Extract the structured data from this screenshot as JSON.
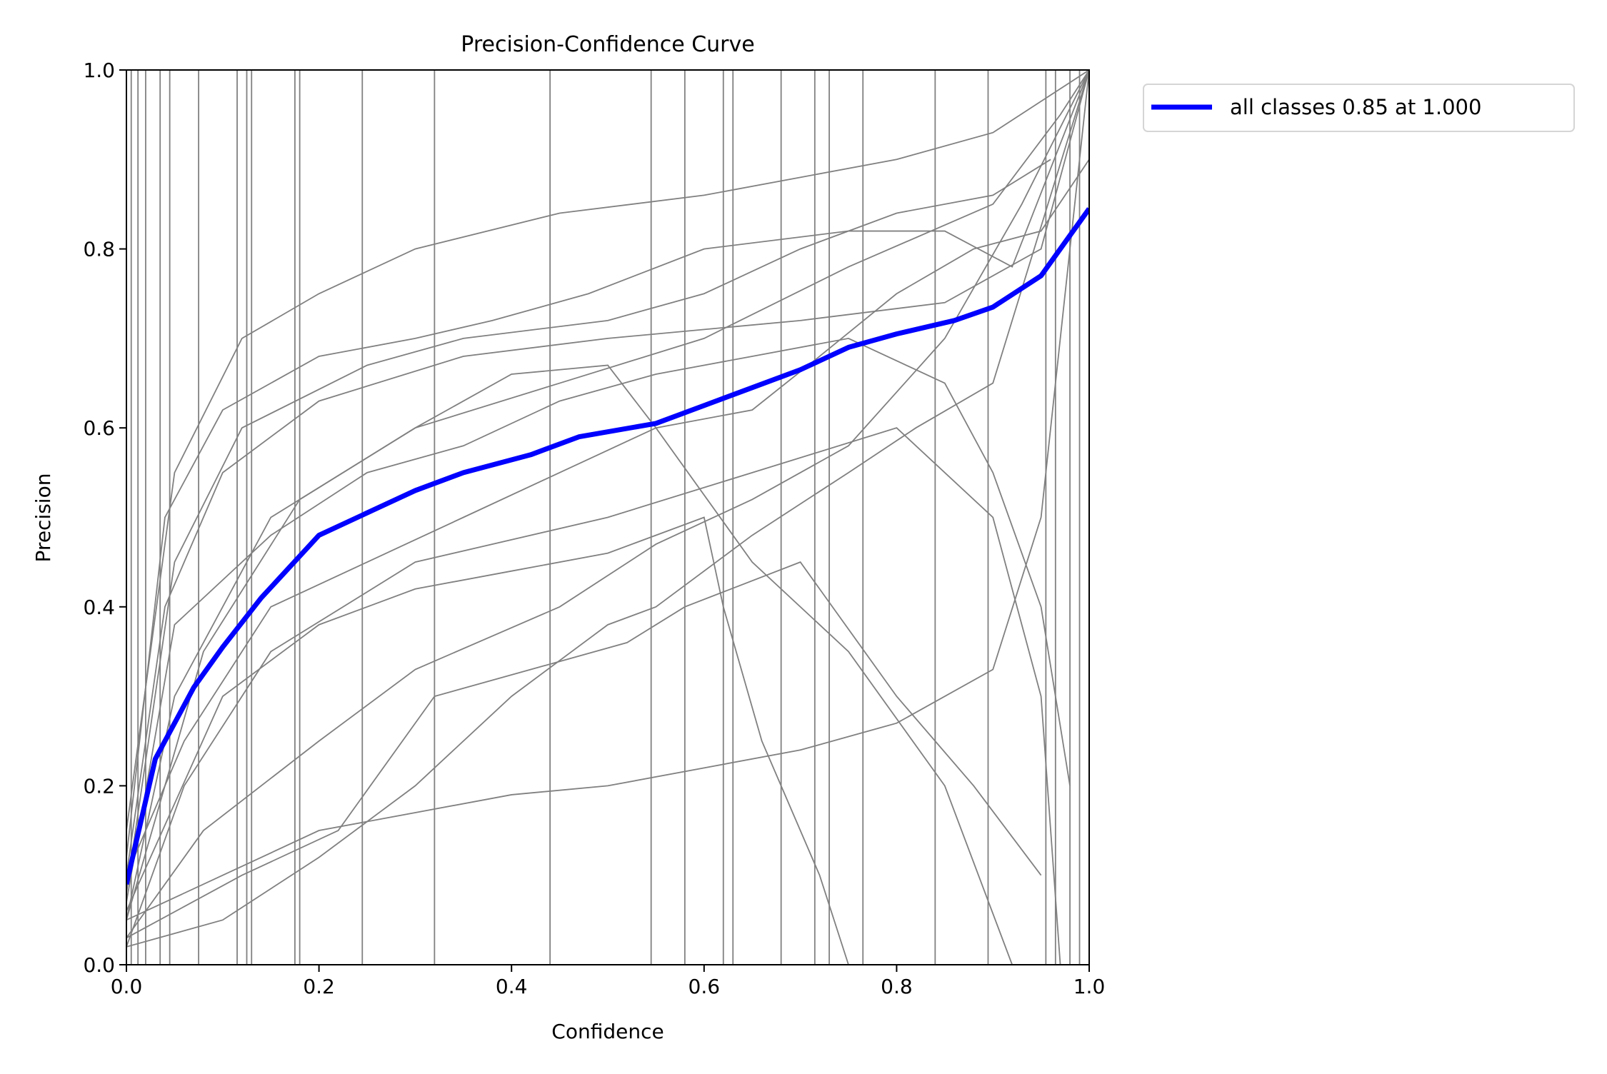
{
  "chart_data": {
    "type": "line",
    "title": "Precision-Confidence Curve",
    "xlabel": "Confidence",
    "ylabel": "Precision",
    "xlim": [
      0,
      1
    ],
    "ylim": [
      0,
      1
    ],
    "xticks": [
      "0.0",
      "0.2",
      "0.4",
      "0.6",
      "0.8",
      "1.0"
    ],
    "yticks": [
      "0.0",
      "0.2",
      "0.4",
      "0.6",
      "0.8",
      "1.0"
    ],
    "grid": false,
    "legend_placement": "outside-top-right",
    "colors": {
      "all_classes": "#0000ff",
      "per_class": "#808080"
    },
    "series": [
      {
        "name": "all classes 0.85 at 1.000",
        "points": [
          [
            0,
            0.09
          ],
          [
            0.03,
            0.23
          ],
          [
            0.07,
            0.31
          ],
          [
            0.1,
            0.355
          ],
          [
            0.14,
            0.41
          ],
          [
            0.2,
            0.48
          ],
          [
            0.25,
            0.505
          ],
          [
            0.3,
            0.53
          ],
          [
            0.35,
            0.55
          ],
          [
            0.42,
            0.57
          ],
          [
            0.47,
            0.59
          ],
          [
            0.55,
            0.605
          ],
          [
            0.6,
            0.625
          ],
          [
            0.65,
            0.645
          ],
          [
            0.7,
            0.665
          ],
          [
            0.75,
            0.69
          ],
          [
            0.8,
            0.705
          ],
          [
            0.86,
            0.72
          ],
          [
            0.9,
            0.735
          ],
          [
            0.95,
            0.77
          ],
          [
            0.97,
            0.8
          ],
          [
            1.0,
            0.845
          ]
        ]
      }
    ],
    "class_series": [
      [
        [
          0,
          0.05
        ],
        [
          0.05,
          0.3
        ],
        [
          0.15,
          0.5
        ],
        [
          0.3,
          0.6
        ],
        [
          0.45,
          0.65
        ],
        [
          0.6,
          0.7
        ],
        [
          0.75,
          0.78
        ],
        [
          0.9,
          0.85
        ],
        [
          0.97,
          0.95
        ],
        [
          1,
          1
        ]
      ],
      [
        [
          0,
          0.1
        ],
        [
          0.04,
          0.4
        ],
        [
          0.1,
          0.55
        ],
        [
          0.2,
          0.63
        ],
        [
          0.35,
          0.68
        ],
        [
          0.5,
          0.7
        ],
        [
          0.7,
          0.72
        ],
        [
          0.85,
          0.74
        ],
        [
          0.95,
          0.8
        ],
        [
          1,
          1
        ]
      ],
      [
        [
          0,
          0.02
        ],
        [
          0.06,
          0.2
        ],
        [
          0.15,
          0.35
        ],
        [
          0.3,
          0.45
        ],
        [
          0.5,
          0.5
        ],
        [
          0.65,
          0.55
        ],
        [
          0.8,
          0.6
        ],
        [
          0.9,
          0.5
        ],
        [
          0.95,
          0.3
        ],
        [
          0.97,
          0
        ]
      ],
      [
        [
          0,
          0.05
        ],
        [
          0.1,
          0.1
        ],
        [
          0.2,
          0.15
        ],
        [
          0.3,
          0.17
        ],
        [
          0.4,
          0.19
        ],
        [
          0.5,
          0.2
        ],
        [
          0.6,
          0.22
        ],
        [
          0.7,
          0.24
        ],
        [
          0.8,
          0.27
        ],
        [
          0.9,
          0.33
        ],
        [
          0.95,
          0.5
        ],
        [
          1,
          1
        ]
      ],
      [
        [
          0,
          0.15
        ],
        [
          0.05,
          0.55
        ],
        [
          0.12,
          0.7
        ],
        [
          0.2,
          0.75
        ],
        [
          0.3,
          0.8
        ],
        [
          0.45,
          0.84
        ],
        [
          0.6,
          0.86
        ],
        [
          0.7,
          0.88
        ],
        [
          0.8,
          0.9
        ],
        [
          0.9,
          0.93
        ],
        [
          1,
          1
        ]
      ],
      [
        [
          0,
          0.03
        ],
        [
          0.08,
          0.15
        ],
        [
          0.2,
          0.25
        ],
        [
          0.3,
          0.33
        ],
        [
          0.45,
          0.4
        ],
        [
          0.55,
          0.47
        ],
        [
          0.65,
          0.52
        ],
        [
          0.75,
          0.58
        ],
        [
          0.85,
          0.7
        ],
        [
          0.93,
          0.85
        ],
        [
          1,
          1
        ]
      ],
      [
        [
          0,
          0.05
        ],
        [
          0.08,
          0.35
        ],
        [
          0.18,
          0.52
        ],
        [
          0.3,
          0.6
        ],
        [
          0.4,
          0.66
        ],
        [
          0.5,
          0.67
        ],
        [
          0.55,
          0.6
        ],
        [
          0.65,
          0.45
        ],
        [
          0.75,
          0.35
        ],
        [
          0.85,
          0.2
        ],
        [
          0.92,
          0
        ]
      ],
      [
        [
          0,
          0.08
        ],
        [
          0.05,
          0.45
        ],
        [
          0.12,
          0.6
        ],
        [
          0.25,
          0.67
        ],
        [
          0.35,
          0.7
        ],
        [
          0.5,
          0.72
        ],
        [
          0.6,
          0.75
        ],
        [
          0.7,
          0.8
        ],
        [
          0.8,
          0.84
        ],
        [
          0.9,
          0.86
        ],
        [
          0.96,
          0.9
        ]
      ],
      [
        [
          0,
          0.02
        ],
        [
          0.1,
          0.05
        ],
        [
          0.2,
          0.12
        ],
        [
          0.3,
          0.2
        ],
        [
          0.4,
          0.3
        ],
        [
          0.5,
          0.38
        ],
        [
          0.55,
          0.4
        ],
        [
          0.65,
          0.48
        ],
        [
          0.75,
          0.55
        ],
        [
          0.82,
          0.6
        ],
        [
          0.9,
          0.65
        ],
        [
          1,
          1
        ]
      ],
      [
        [
          0,
          0.1
        ],
        [
          0.06,
          0.25
        ],
        [
          0.15,
          0.4
        ],
        [
          0.25,
          0.45
        ],
        [
          0.35,
          0.5
        ],
        [
          0.45,
          0.55
        ],
        [
          0.55,
          0.6
        ],
        [
          0.65,
          0.62
        ],
        [
          0.72,
          0.68
        ],
        [
          0.8,
          0.75
        ],
        [
          0.88,
          0.8
        ],
        [
          0.95,
          0.82
        ],
        [
          1,
          0.9
        ]
      ],
      [
        [
          0,
          0.06
        ],
        [
          0.1,
          0.3
        ],
        [
          0.2,
          0.38
        ],
        [
          0.3,
          0.42
        ],
        [
          0.4,
          0.44
        ],
        [
          0.5,
          0.46
        ],
        [
          0.6,
          0.5
        ],
        [
          0.62,
          0.4
        ],
        [
          0.66,
          0.25
        ],
        [
          0.72,
          0.1
        ],
        [
          0.75,
          0
        ]
      ],
      [
        [
          0,
          0.12
        ],
        [
          0.04,
          0.5
        ],
        [
          0.1,
          0.62
        ],
        [
          0.2,
          0.68
        ],
        [
          0.3,
          0.7
        ],
        [
          0.38,
          0.72
        ],
        [
          0.48,
          0.75
        ],
        [
          0.6,
          0.8
        ],
        [
          0.75,
          0.82
        ],
        [
          0.85,
          0.82
        ],
        [
          0.92,
          0.78
        ],
        [
          1,
          1
        ]
      ],
      [
        [
          0,
          0.03
        ],
        [
          0.12,
          0.1
        ],
        [
          0.22,
          0.15
        ],
        [
          0.32,
          0.3
        ],
        [
          0.42,
          0.33
        ],
        [
          0.52,
          0.36
        ],
        [
          0.58,
          0.4
        ],
        [
          0.7,
          0.45
        ],
        [
          0.8,
          0.3
        ],
        [
          0.88,
          0.2
        ],
        [
          0.95,
          0.1
        ]
      ],
      [
        [
          0,
          0.07
        ],
        [
          0.05,
          0.38
        ],
        [
          0.15,
          0.48
        ],
        [
          0.25,
          0.55
        ],
        [
          0.35,
          0.58
        ],
        [
          0.45,
          0.63
        ],
        [
          0.55,
          0.66
        ],
        [
          0.65,
          0.68
        ],
        [
          0.75,
          0.7
        ],
        [
          0.85,
          0.65
        ],
        [
          0.9,
          0.55
        ],
        [
          0.95,
          0.4
        ],
        [
          0.98,
          0.2
        ]
      ]
    ],
    "vertical_drops": [
      0.005,
      0.012,
      0.02,
      0.035,
      0.045,
      0.075,
      0.115,
      0.125,
      0.13,
      0.175,
      0.18,
      0.245,
      0.32,
      0.44,
      0.545,
      0.58,
      0.62,
      0.63,
      0.68,
      0.715,
      0.73,
      0.765,
      0.84,
      0.895,
      0.955,
      0.965,
      0.98,
      0.99
    ]
  }
}
